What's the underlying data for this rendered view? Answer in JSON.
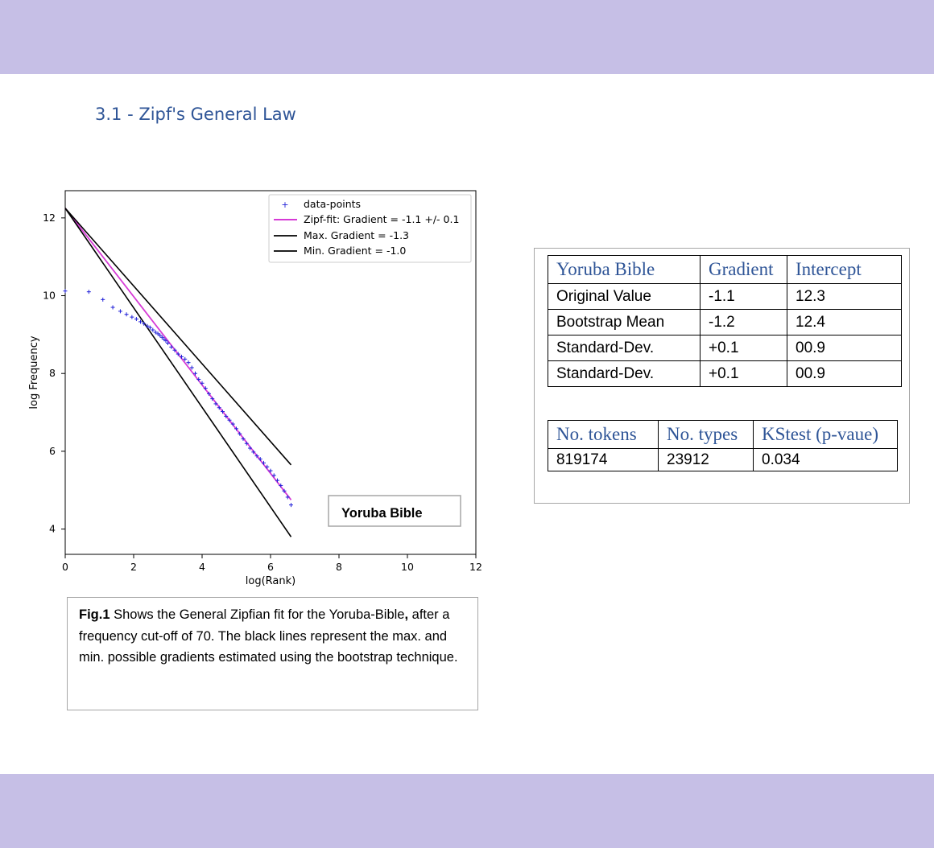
{
  "section_heading": "3.1 -  Zipf's General Law",
  "chart_data": {
    "type": "scatter",
    "xlabel": "log(Rank)",
    "ylabel": "log Frequency",
    "xlim": [
      0,
      12
    ],
    "ylim": [
      3.35,
      12.7
    ],
    "xticks": [
      "0",
      "2",
      "4",
      "6",
      "8",
      "10",
      "12"
    ],
    "yticks": [
      "4",
      "6",
      "8",
      "10",
      "12"
    ],
    "legend_position": "top-right",
    "colors": {
      "data": "#1f1fd8",
      "fit": "#d63ad6",
      "bounds": "#000000"
    },
    "legend": [
      {
        "label": "data-points",
        "style": "marker"
      },
      {
        "label": "Zipf-fit: Gradient = -1.1 +/- 0.1",
        "style": "line-magenta"
      },
      {
        "label": "Max. Gradient = -1.3",
        "style": "line-black"
      },
      {
        "label": "Min. Gradient = -1.0",
        "style": "line-black"
      }
    ],
    "annotation": "Yoruba Bible",
    "lines": [
      {
        "name": "Zipf-fit: Gradient = -1.1 +/- 0.1",
        "x": [
          0,
          6.6
        ],
        "y": [
          12.25,
          4.75
        ]
      },
      {
        "name": "Max. Gradient = -1.3",
        "x": [
          0,
          6.6
        ],
        "y": [
          12.25,
          3.8
        ]
      },
      {
        "name": "Min. Gradient = -1.0",
        "x": [
          0,
          6.6
        ],
        "y": [
          12.25,
          5.65
        ]
      }
    ],
    "data_points": {
      "x": [
        0.0,
        0.69,
        1.1,
        1.39,
        1.61,
        1.79,
        1.95,
        2.08,
        2.2,
        2.3,
        2.4,
        2.48,
        2.56,
        2.64,
        2.71,
        2.77,
        2.83,
        2.89,
        2.94,
        3.0,
        3.1,
        3.2,
        3.3,
        3.4,
        3.5,
        3.6,
        3.7,
        3.8,
        3.9,
        4.0,
        4.1,
        4.2,
        4.3,
        4.4,
        4.5,
        4.6,
        4.7,
        4.8,
        4.9,
        5.0,
        5.1,
        5.2,
        5.3,
        5.4,
        5.5,
        5.6,
        5.7,
        5.8,
        5.9,
        6.0,
        6.1,
        6.2,
        6.3,
        6.4,
        6.5,
        6.6
      ],
      "y": [
        10.12,
        10.1,
        9.9,
        9.7,
        9.6,
        9.52,
        9.45,
        9.4,
        9.33,
        9.28,
        9.22,
        9.18,
        9.12,
        9.06,
        9.02,
        8.98,
        8.93,
        8.88,
        8.84,
        8.78,
        8.68,
        8.6,
        8.5,
        8.43,
        8.37,
        8.28,
        8.15,
        8.0,
        7.85,
        7.75,
        7.62,
        7.48,
        7.35,
        7.22,
        7.12,
        7.02,
        6.9,
        6.8,
        6.7,
        6.58,
        6.45,
        6.32,
        6.2,
        6.08,
        5.98,
        5.88,
        5.8,
        5.7,
        5.6,
        5.5,
        5.38,
        5.25,
        5.12,
        4.98,
        4.82,
        4.62
      ]
    }
  },
  "caption": {
    "label": "Fig.1",
    "text": " Shows the General Zipfian fit for the Yoruba-Bible",
    "comma": ",",
    "text2": " after a frequency cut-off of 70. The black lines represent the max. and min. possible gradients estimated using the bootstrap technique."
  },
  "stats_table": {
    "headers": [
      "Yoruba Bible",
      "Gradient",
      "Intercept"
    ],
    "rows": [
      [
        "Original Value",
        "-1.1",
        "12.3"
      ],
      [
        "Bootstrap Mean",
        "-1.2",
        "12.4"
      ],
      [
        "Standard-Dev.",
        "+0.1",
        "00.9"
      ],
      [
        "Standard-Dev.",
        "+0.1",
        "00.9"
      ]
    ]
  },
  "counts_table": {
    "headers": [
      "No. tokens",
      "No. types",
      "KStest (p-vaue)"
    ],
    "rows": [
      [
        "819174",
        "23912",
        "0.034"
      ]
    ]
  }
}
